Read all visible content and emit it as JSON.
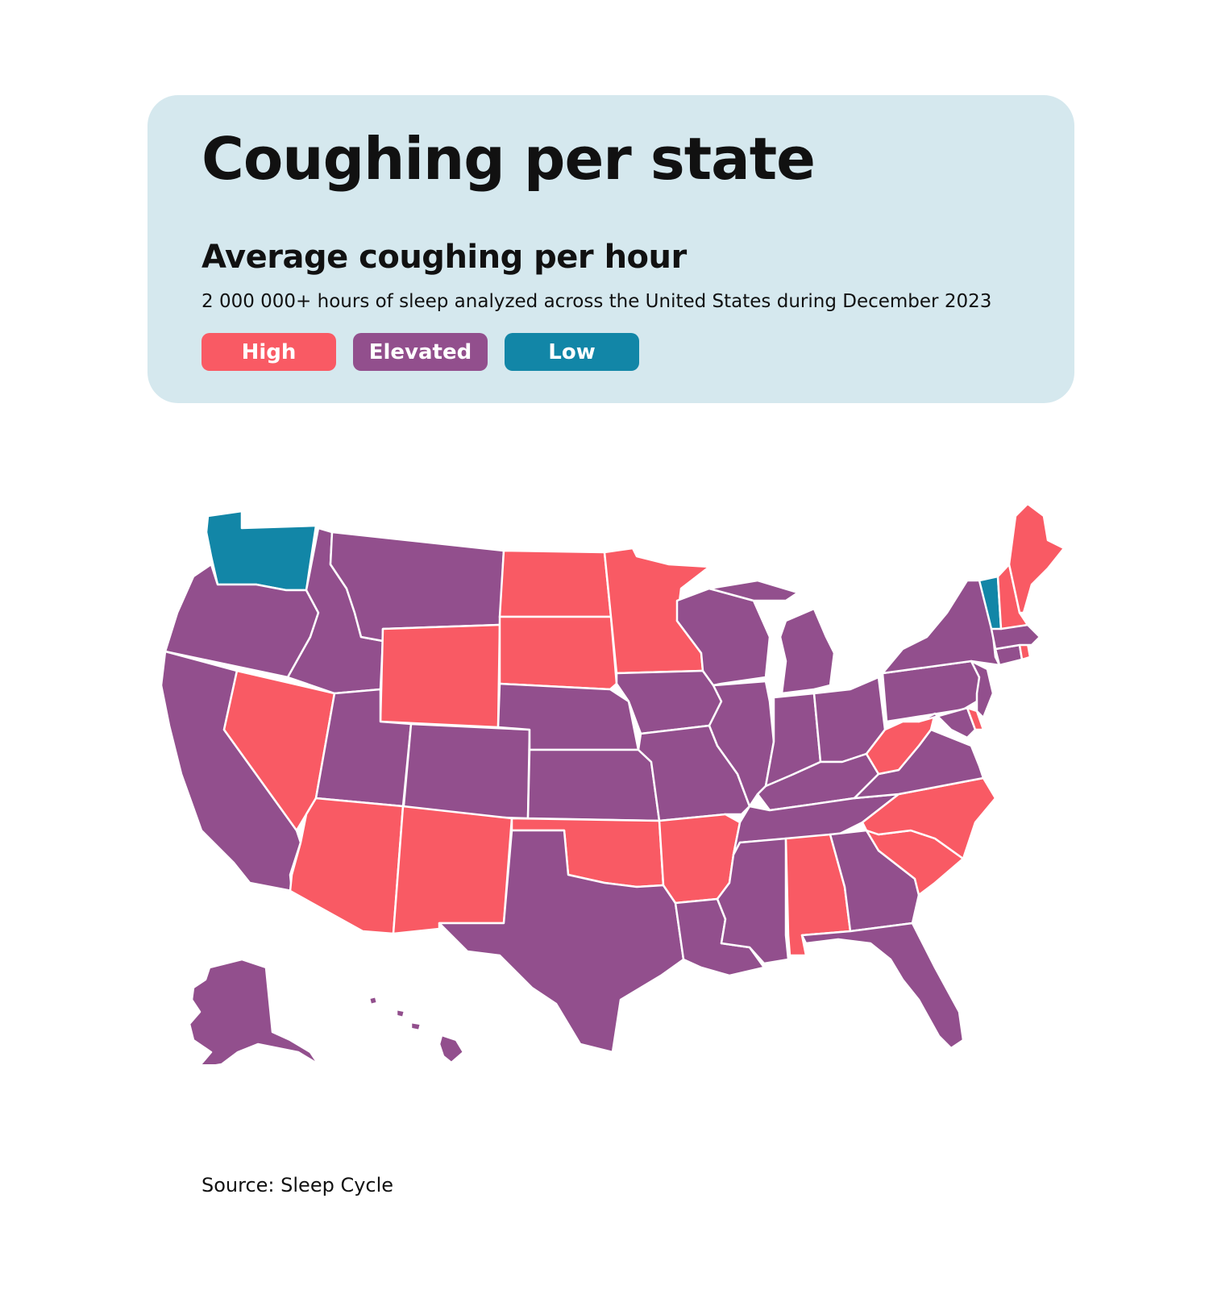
{
  "header": {
    "title": "Coughing per state",
    "subtitle": "Average coughing per hour",
    "description": "2 000 000+ hours of sleep analyzed across the United States during December 2023",
    "background_color": "#d5e8ee"
  },
  "legend": [
    {
      "label": "High",
      "color": "#f95a64"
    },
    {
      "label": "Elevated",
      "color": "#924f8d"
    },
    {
      "label": "Low",
      "color": "#1286a7"
    }
  ],
  "states": {
    "WA": "Low",
    "OR": "Elevated",
    "CA": "Elevated",
    "NV": "High",
    "ID": "Elevated",
    "MT": "Elevated",
    "WY": "High",
    "UT": "Elevated",
    "CO": "Elevated",
    "AZ": "High",
    "NM": "High",
    "ND": "High",
    "SD": "High",
    "NE": "Elevated",
    "KS": "Elevated",
    "OK": "High",
    "TX": "Elevated",
    "MN": "High",
    "IA": "Elevated",
    "MO": "Elevated",
    "AR": "High",
    "LA": "Elevated",
    "WI": "Elevated",
    "IL": "Elevated",
    "MI": "Elevated",
    "IN": "Elevated",
    "OH": "Elevated",
    "KY": "Elevated",
    "TN": "Elevated",
    "MS": "Elevated",
    "AL": "High",
    "GA": "Elevated",
    "FL": "Elevated",
    "SC": "High",
    "NC": "High",
    "VA": "Elevated",
    "WV": "High",
    "PA": "Elevated",
    "NY": "Elevated",
    "NJ": "Elevated",
    "DE": "High",
    "MD": "Elevated",
    "CT": "Elevated",
    "RI": "High",
    "MA": "Elevated",
    "VT": "Low",
    "NH": "High",
    "ME": "High",
    "AK": "Elevated",
    "HI": "Elevated"
  },
  "source": "Source: Sleep Cycle"
}
